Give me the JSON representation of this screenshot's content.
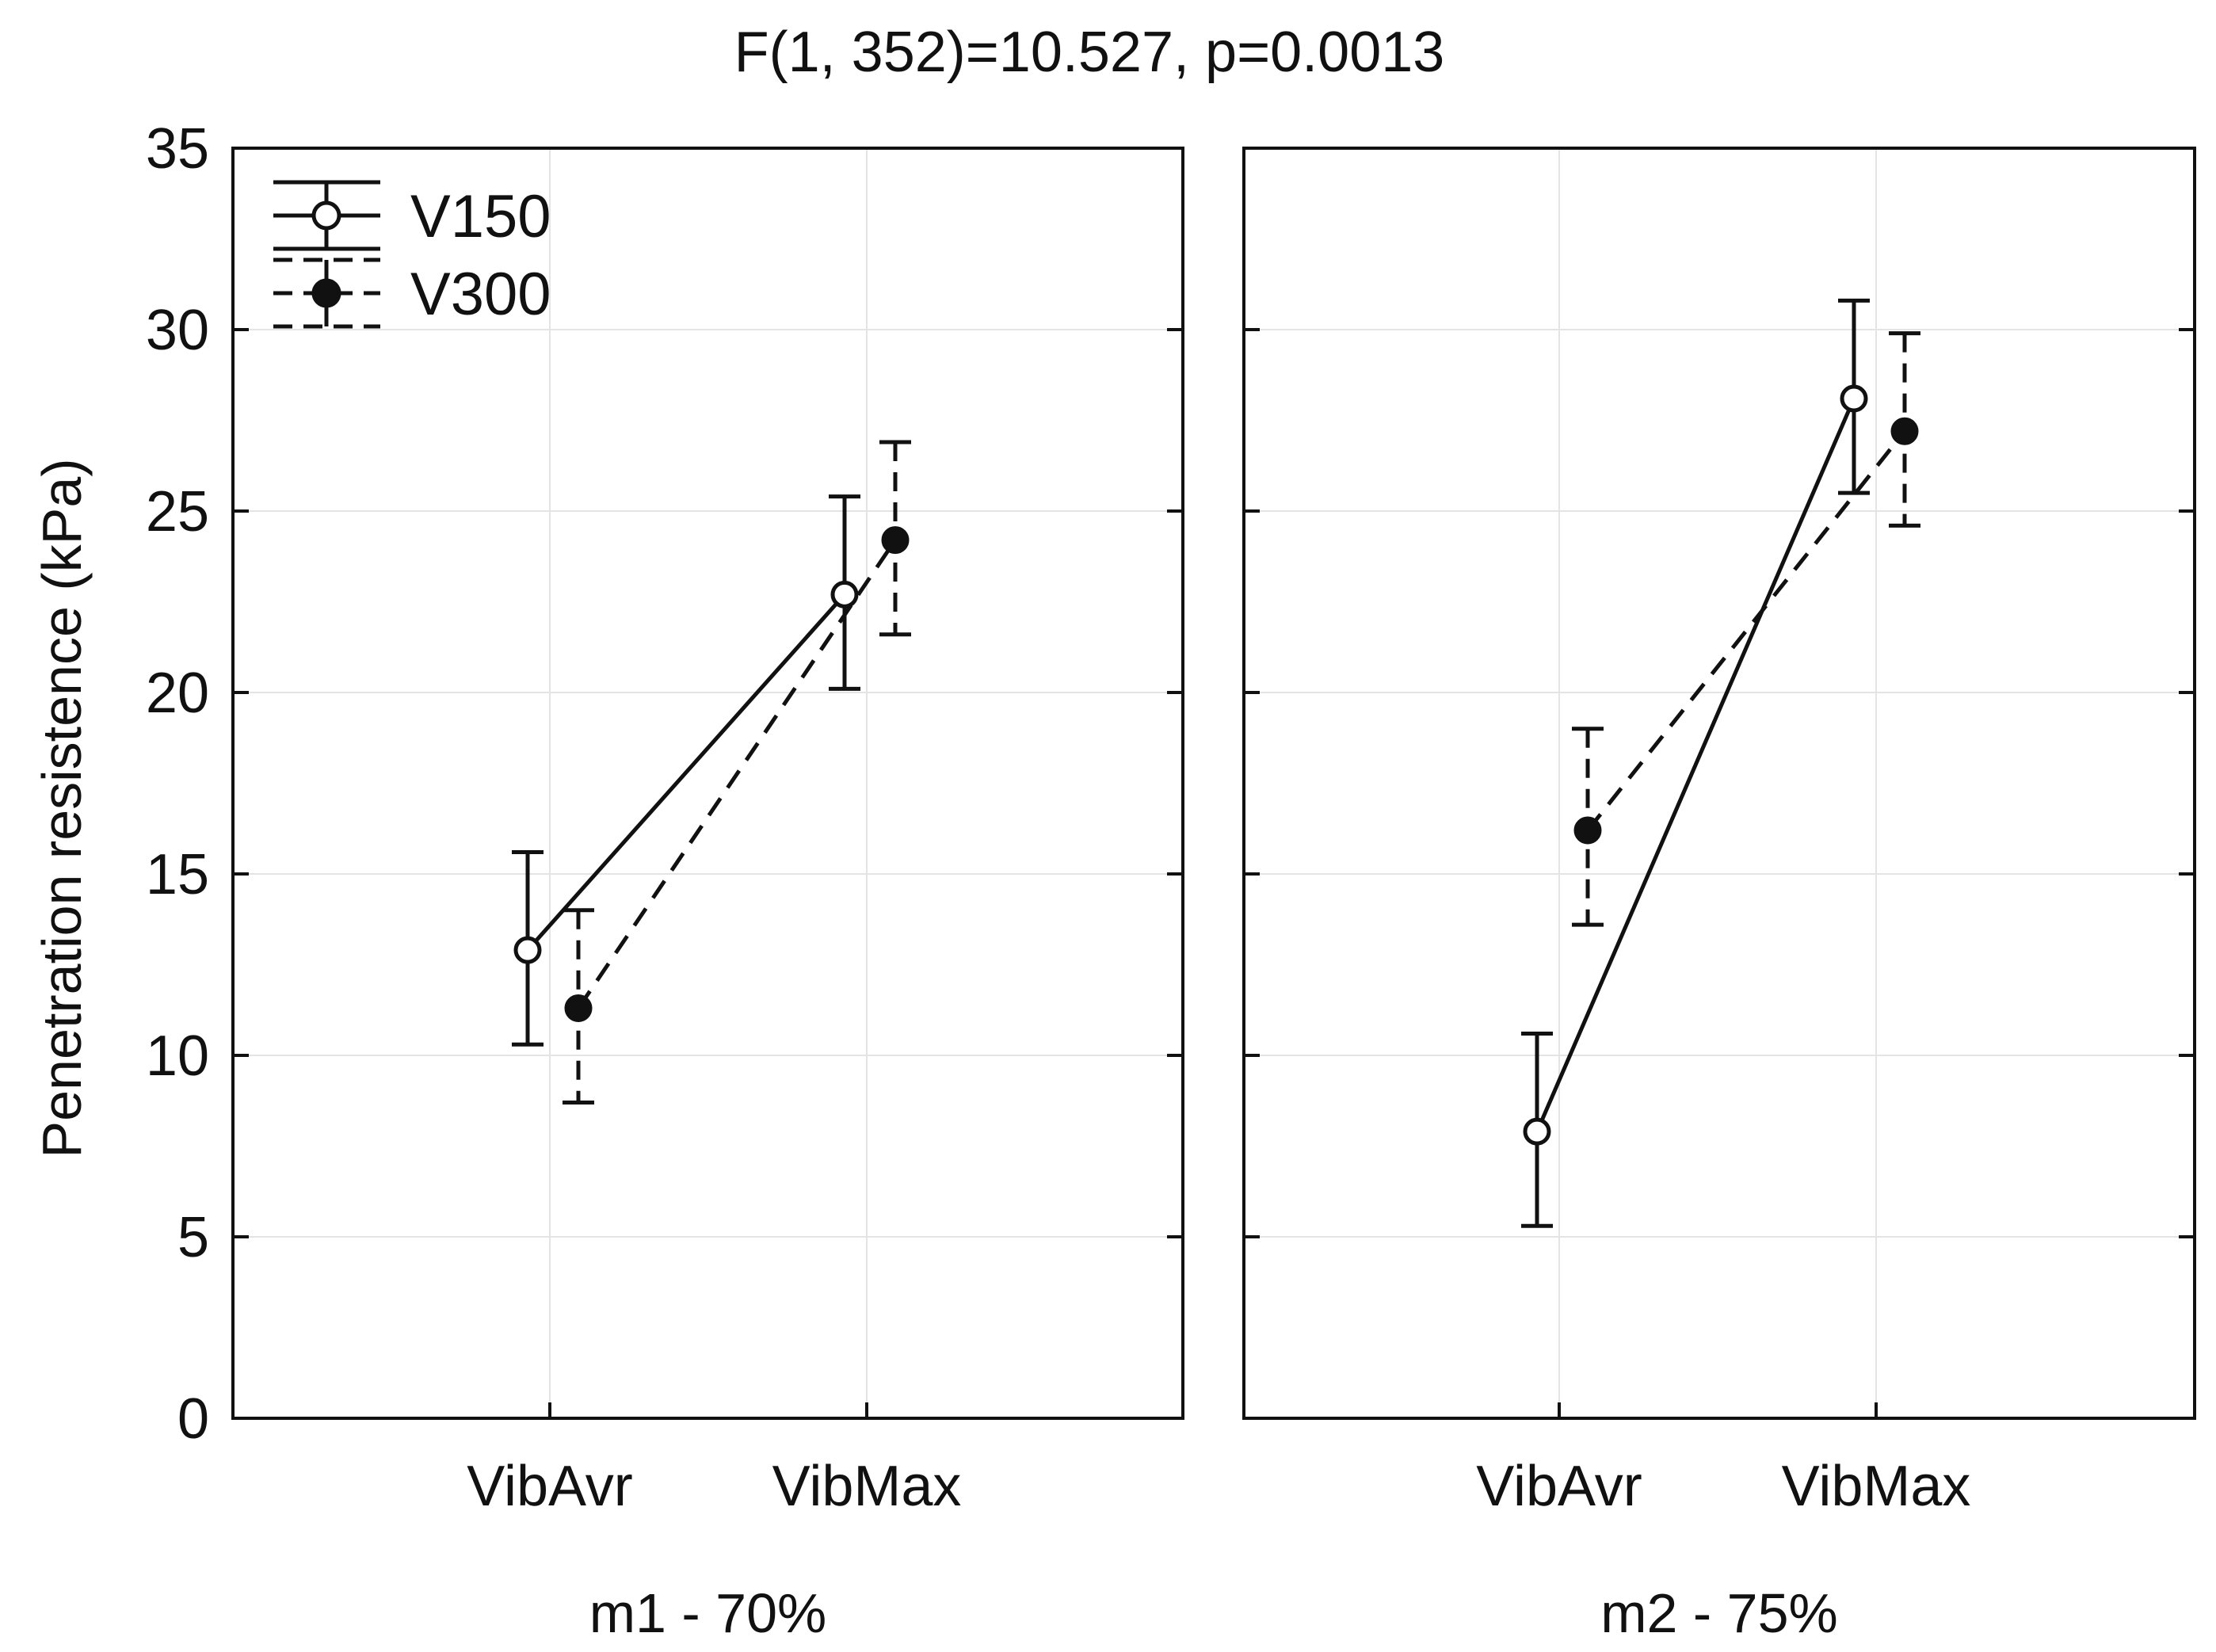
{
  "chart_data": {
    "type": "line",
    "title": "F(1, 352)=10.527, p=0.0013",
    "ylabel": "Penetration resistence (kPa)",
    "ylim": [
      0,
      35
    ],
    "yticks": [
      0,
      5,
      10,
      15,
      20,
      25,
      30,
      35
    ],
    "grid": true,
    "legend": {
      "position": "top-left",
      "entries": [
        {
          "name": "V150",
          "line": "solid",
          "marker": "open-circle"
        },
        {
          "name": "V300",
          "line": "dashed",
          "marker": "filled-circle"
        }
      ]
    },
    "panels": [
      {
        "label": "m1 - 70%",
        "categories": [
          "VibAvr",
          "VibMax"
        ],
        "series": [
          {
            "name": "V150",
            "values": [
              12.9,
              22.7
            ],
            "ci_low": [
              10.3,
              20.1
            ],
            "ci_high": [
              15.6,
              25.4
            ]
          },
          {
            "name": "V300",
            "values": [
              11.3,
              24.2
            ],
            "ci_low": [
              8.7,
              21.6
            ],
            "ci_high": [
              14.0,
              26.9
            ]
          }
        ]
      },
      {
        "label": "m2 - 75%",
        "categories": [
          "VibAvr",
          "VibMax"
        ],
        "series": [
          {
            "name": "V150",
            "values": [
              7.9,
              28.1
            ],
            "ci_low": [
              5.3,
              25.5
            ],
            "ci_high": [
              10.6,
              30.8
            ]
          },
          {
            "name": "V300",
            "values": [
              16.2,
              27.2
            ],
            "ci_low": [
              13.6,
              24.6
            ],
            "ci_high": [
              19.0,
              29.9
            ]
          }
        ]
      }
    ]
  }
}
